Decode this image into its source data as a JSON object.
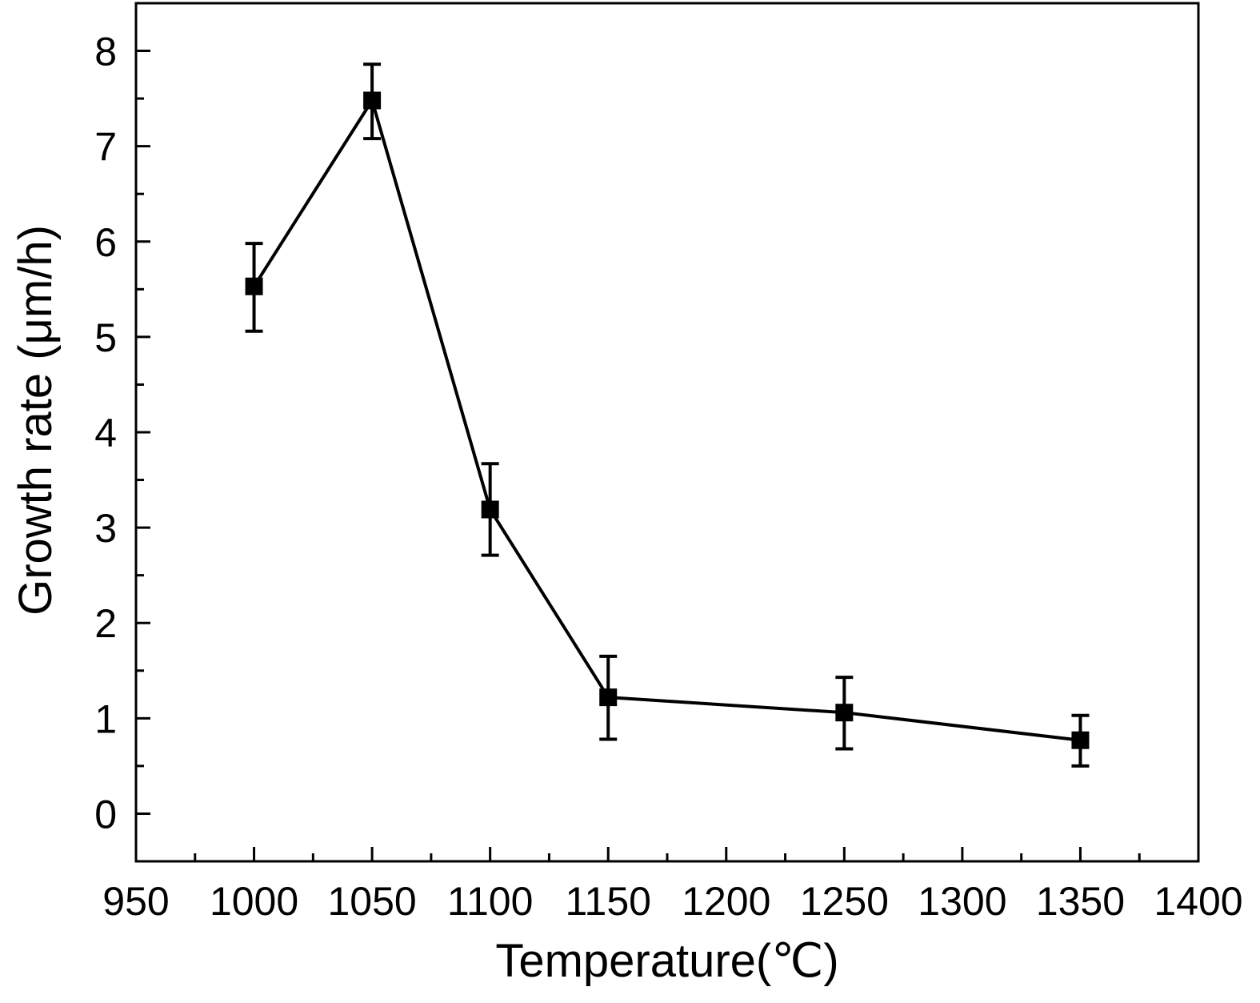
{
  "chart_data": {
    "type": "line",
    "title": "",
    "xlabel": "Temperature(℃)",
    "ylabel": "Growth rate (μm/h)",
    "xlim": [
      950,
      1400
    ],
    "ylim": [
      -0.5,
      8.5
    ],
    "x_ticks": [
      950,
      1000,
      1050,
      1100,
      1150,
      1200,
      1250,
      1300,
      1350,
      1400
    ],
    "y_ticks": [
      0,
      1,
      2,
      3,
      4,
      5,
      6,
      7,
      8
    ],
    "grid": false,
    "legend": "none",
    "marker": "square",
    "color": "#000000",
    "series": [
      {
        "x": [
          1000,
          1050,
          1100,
          1150,
          1250,
          1350
        ],
        "y": [
          5.53,
          7.48,
          3.19,
          1.22,
          1.06,
          0.77
        ],
        "y_err_upper": [
          5.98,
          7.86,
          3.67,
          1.65,
          1.43,
          1.03
        ],
        "y_err_lower": [
          5.06,
          7.08,
          2.71,
          0.78,
          0.68,
          0.5
        ]
      }
    ]
  }
}
